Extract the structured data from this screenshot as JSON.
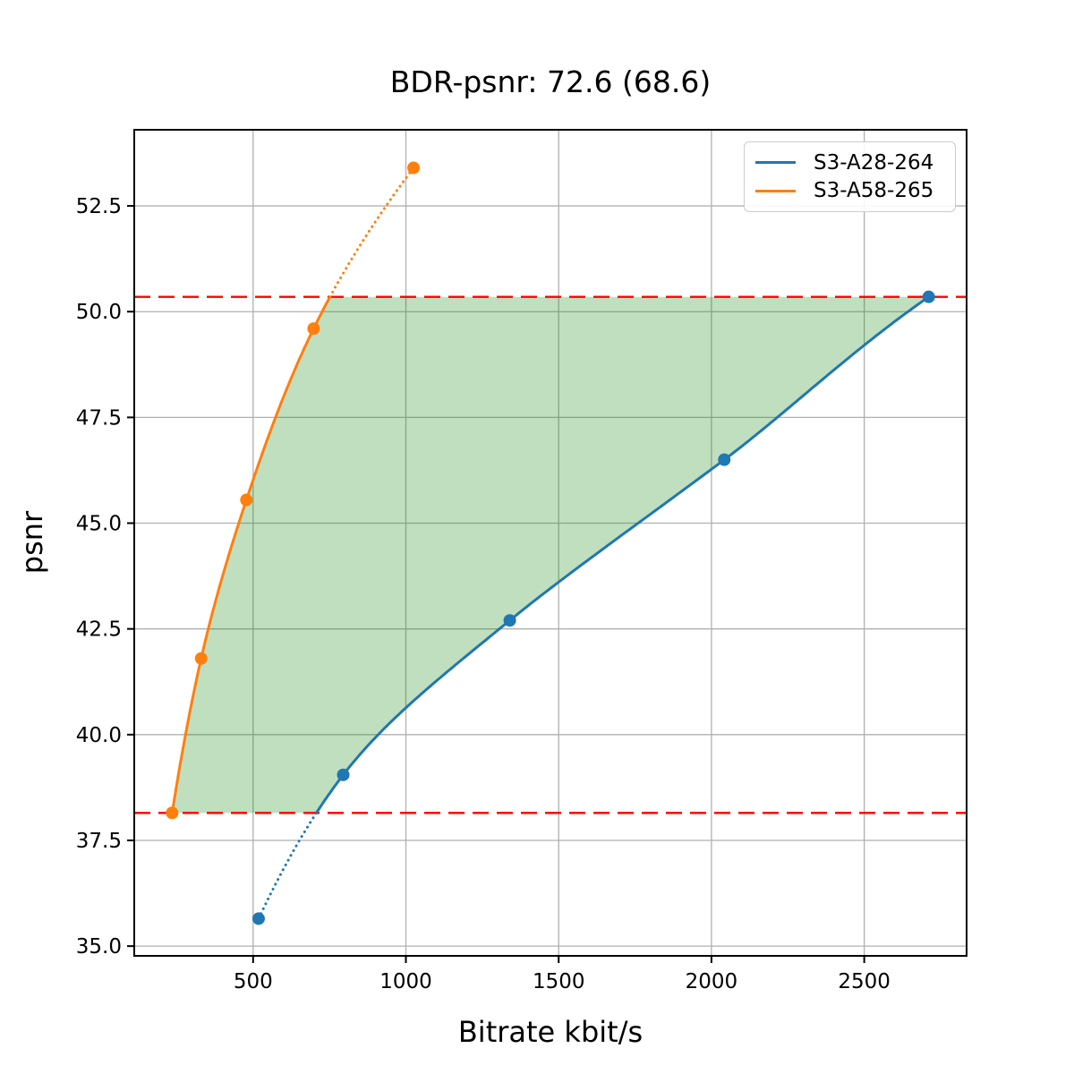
{
  "page": {
    "background": "#ffffff"
  },
  "chart_data": {
    "type": "line",
    "title": "BDR-psnr: 72.6 (68.6)",
    "bdr_psnr": "72.6",
    "bdr_psnr_alt": "68.6",
    "xlabel": "Bitrate kbit/s",
    "ylabel": "psnr",
    "xlim": [
      111,
      2835
    ],
    "ylim": [
      34.77,
      54.3
    ],
    "xticks": [
      500,
      1000,
      1500,
      2000,
      2500
    ],
    "yticks": [
      35.0,
      37.5,
      40.0,
      42.5,
      45.0,
      47.5,
      50.0,
      52.5
    ],
    "grid": true,
    "grid_color": "#b0b0b0",
    "axis_color": "#000000",
    "legend": {
      "position": "upper-right",
      "entries": [
        "S3-A28-264",
        "S3-A58-265"
      ]
    },
    "series": [
      {
        "name": "S3-A28-264",
        "color": "#1f77b4",
        "x": [
          518,
          795,
          1340,
          2042,
          2711
        ],
        "y": [
          35.65,
          39.05,
          42.7,
          46.5,
          50.35
        ],
        "note": "dotted below overlap range"
      },
      {
        "name": "S3-A58-265",
        "color": "#ff7f0e",
        "x": [
          235,
          330,
          478,
          698,
          1025
        ],
        "y": [
          38.15,
          41.8,
          45.55,
          49.6,
          53.4
        ],
        "note": "dotted above overlap range"
      }
    ],
    "overlap": {
      "psnr_low": 38.15,
      "psnr_high": 50.35,
      "line_color": "#ff0000",
      "line_style": "dashed"
    },
    "shaded_region": {
      "fill_color": "#008000",
      "opacity": 0.25
    }
  }
}
